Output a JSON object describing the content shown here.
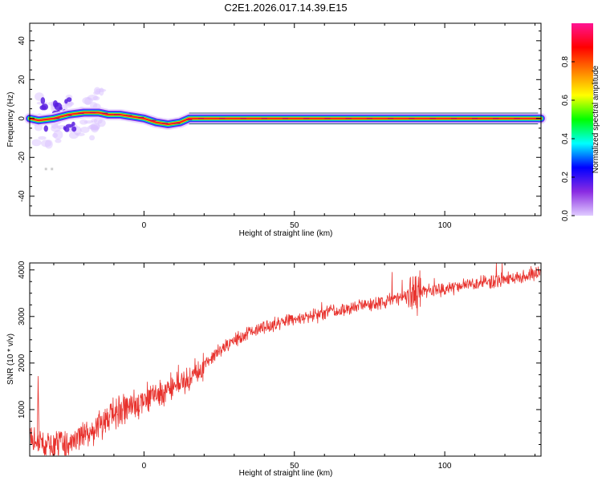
{
  "title": "C2E1.2026.017.14.39.E15",
  "chart_data": [
    {
      "type": "heatmap",
      "xlabel": "Height of straight line (km)",
      "ylabel": "Frequency (Hz)",
      "xlim": [
        -38,
        132
      ],
      "ylim": [
        -50,
        49
      ],
      "xticks": [
        0,
        50,
        100
      ],
      "yticks": [
        -40,
        -20,
        0,
        20,
        40
      ],
      "grid": false,
      "ridge": [
        [
          -38,
          0
        ],
        [
          -35,
          -1
        ],
        [
          -30,
          0
        ],
        [
          -25,
          2
        ],
        [
          -20,
          3
        ],
        [
          -15,
          3
        ],
        [
          -12,
          2
        ],
        [
          -8,
          2
        ],
        [
          -4,
          1
        ],
        [
          0,
          0
        ],
        [
          4,
          -2
        ],
        [
          8,
          -3
        ],
        [
          12,
          -2
        ],
        [
          15,
          0
        ],
        [
          20,
          0
        ],
        [
          40,
          0
        ],
        [
          60,
          0
        ],
        [
          80,
          0
        ],
        [
          90,
          0
        ],
        [
          100,
          0
        ],
        [
          120,
          0
        ],
        [
          132,
          0
        ]
      ],
      "colorbar": {
        "label": "Normalized spectral amplitude",
        "range": [
          0.0,
          1.0
        ],
        "ticks": [
          "0.0",
          "0.2",
          "0.4",
          "0.6",
          "0.8"
        ],
        "colors": [
          "#e0ccff",
          "#8a2be2",
          "#0000ff",
          "#00ffff",
          "#00ff00",
          "#ffff00",
          "#ff8000",
          "#ff0000",
          "#ff1493"
        ]
      }
    },
    {
      "type": "line",
      "xlabel": "Height of straight line (km)",
      "ylabel": "SNR (10 * v/v)",
      "xlim": [
        -38,
        132
      ],
      "ylim": [
        0,
        4150
      ],
      "xticks": [
        0,
        50,
        100
      ],
      "yticks": [
        1000,
        2000,
        3000,
        4000
      ],
      "grid": false,
      "line_color": "#e8322d",
      "series_trend": [
        [
          -38,
          400
        ],
        [
          -35,
          300
        ],
        [
          -30,
          200
        ],
        [
          -25,
          250
        ],
        [
          -20,
          480
        ],
        [
          -15,
          650
        ],
        [
          -10,
          900
        ],
        [
          -5,
          1050
        ],
        [
          0,
          1200
        ],
        [
          5,
          1350
        ],
        [
          10,
          1500
        ],
        [
          15,
          1650
        ],
        [
          20,
          1950
        ],
        [
          25,
          2250
        ],
        [
          30,
          2500
        ],
        [
          35,
          2650
        ],
        [
          40,
          2750
        ],
        [
          45,
          2850
        ],
        [
          50,
          2950
        ],
        [
          55,
          3000
        ],
        [
          60,
          3050
        ],
        [
          65,
          3150
        ],
        [
          70,
          3200
        ],
        [
          75,
          3250
        ],
        [
          80,
          3300
        ],
        [
          85,
          3400
        ],
        [
          90,
          3500
        ],
        [
          95,
          3550
        ],
        [
          100,
          3600
        ],
        [
          105,
          3650
        ],
        [
          110,
          3700
        ],
        [
          115,
          3750
        ],
        [
          120,
          3800
        ],
        [
          125,
          3850
        ],
        [
          132,
          3950
        ]
      ]
    }
  ]
}
